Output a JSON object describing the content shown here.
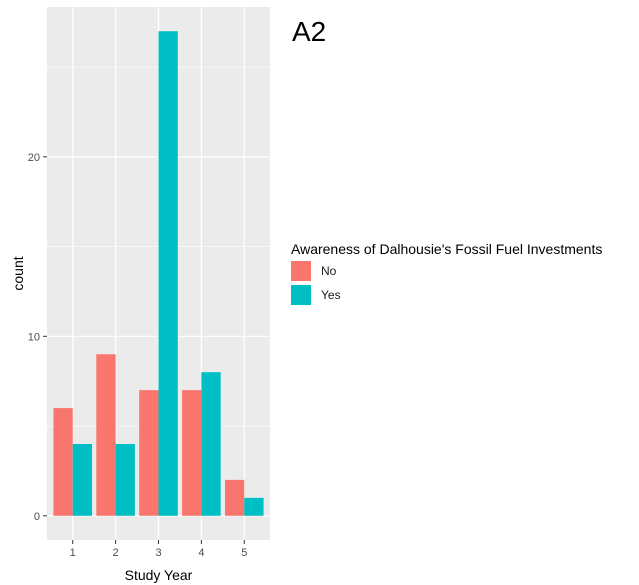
{
  "figure_label": "A2",
  "chart_data": {
    "type": "bar",
    "categories": [
      "1",
      "2",
      "3",
      "4",
      "5"
    ],
    "series": [
      {
        "name": "No",
        "values": [
          6,
          9,
          7,
          7,
          2
        ],
        "color": "#F8766D"
      },
      {
        "name": "Yes",
        "values": [
          4,
          4,
          27,
          8,
          1
        ],
        "color": "#00BFC4"
      }
    ],
    "xlabel": "Study Year",
    "ylabel": "count",
    "yticks": [
      0,
      10,
      20
    ],
    "ylim": [
      -1.35,
      28.35
    ],
    "legend_title": "Awareness of Dalhousie's Fossil Fuel Investments",
    "legend_position": "right",
    "grid": true,
    "panel_background": "#EBEBEB"
  }
}
